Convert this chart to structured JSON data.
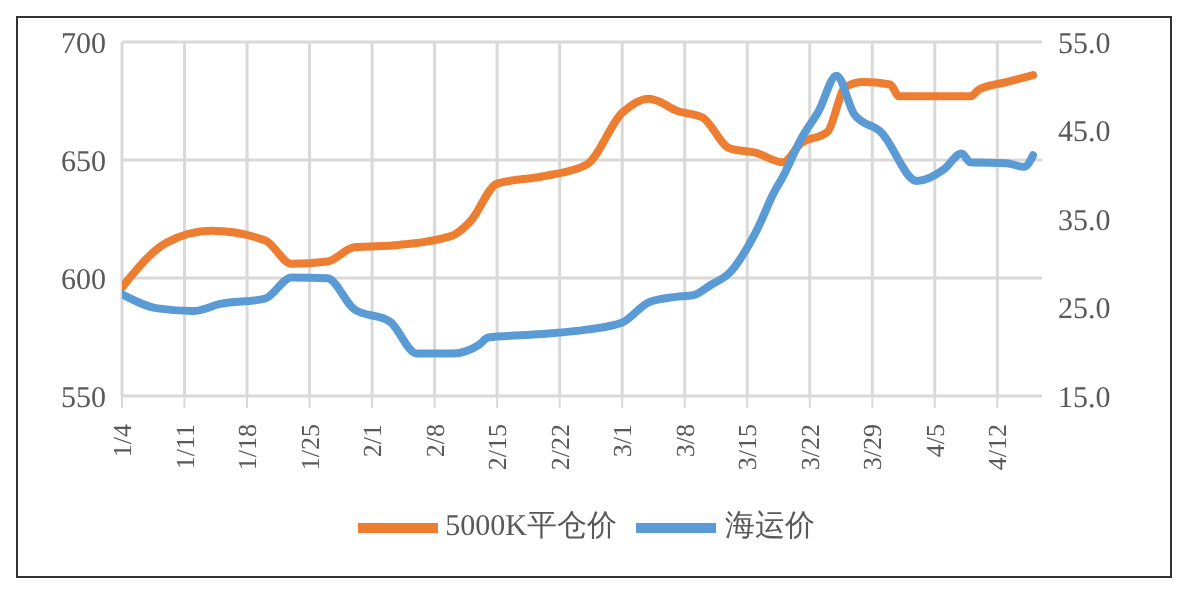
{
  "chart_data": {
    "type": "line",
    "xlim": [
      "--01-04",
      "--04-17"
    ],
    "xticks": [
      {
        "value": "--01-04",
        "label": "1/4"
      },
      {
        "value": "--01-11",
        "label": "1/11"
      },
      {
        "value": "--01-18",
        "label": "1/18"
      },
      {
        "value": "--01-25",
        "label": "1/25"
      },
      {
        "value": "--02-01",
        "label": "2/1"
      },
      {
        "value": "--02-08",
        "label": "2/8"
      },
      {
        "value": "--02-15",
        "label": "2/15"
      },
      {
        "value": "--02-22",
        "label": "2/22"
      },
      {
        "value": "--03-01",
        "label": "3/1"
      },
      {
        "value": "--03-08",
        "label": "3/8"
      },
      {
        "value": "--03-15",
        "label": "3/15"
      },
      {
        "value": "--03-22",
        "label": "3/22"
      },
      {
        "value": "--03-29",
        "label": "3/29"
      },
      {
        "value": "--04-05",
        "label": "4/5"
      },
      {
        "value": "--04-12",
        "label": "4/12"
      }
    ],
    "ylim": [
      550,
      700
    ],
    "yticks": [
      550,
      600,
      650,
      700
    ],
    "y2lim": [
      15,
      55
    ],
    "y2ticks": [
      {
        "value": 15,
        "label": "15.0"
      },
      {
        "value": 25,
        "label": "25.0"
      },
      {
        "value": 35,
        "label": "35.0"
      },
      {
        "value": 45,
        "label": "45.0"
      },
      {
        "value": 55,
        "label": "55.0"
      }
    ],
    "grid": true,
    "legend": "bottom",
    "marker": "none",
    "line_style": "solid",
    "series": [
      {
        "name": "5000K平仓价",
        "color": "#ed7d31",
        "x": [
          "--01-04",
          "--01-09",
          "--01-14",
          "--01-20",
          "--01-23",
          "--01-27",
          "--01-30",
          "--02-04",
          "--02-10",
          "--02-12",
          "--02-15",
          "--02-20",
          "--02-25",
          "--03-01",
          "--03-04",
          "--03-05",
          "--03-07",
          "--03-10",
          "--03-13",
          "--03-16",
          "--03-19",
          "--03-21",
          "--03-24",
          "--03-26",
          "--03-28",
          "--03-31",
          "--04-01",
          "--04-09",
          "--04-10",
          "--04-13",
          "--04-16"
        ],
        "values": [
          596,
          615,
          620,
          616,
          606,
          607,
          613,
          614,
          618,
          624,
          640,
          643,
          648,
          670,
          676,
          675,
          671,
          668,
          655,
          653,
          649,
          657,
          662,
          681,
          683,
          682,
          677,
          677,
          680,
          683,
          686
        ]
      },
      {
        "name": "海运价",
        "color": "#5b9bd5",
        "axis": "y2",
        "x": [
          "--01-04",
          "--01-08",
          "--01-12",
          "--01-15",
          "--01-20",
          "--01-23",
          "--01-27",
          "--01-30",
          "--02-03",
          "--02-06",
          "--02-10",
          "--02-13",
          "--02-14",
          "--02-20",
          "--02-25",
          "--03-01",
          "--03-04",
          "--03-07",
          "--03-09",
          "--03-11",
          "--03-13",
          "--03-16",
          "--03-18",
          "--03-19",
          "--03-21",
          "--03-23",
          "--03-25",
          "--03-27",
          "--03-30",
          "--04-03",
          "--04-06",
          "--04-08",
          "--04-09",
          "--04-13",
          "--04-15",
          "--04-16"
        ],
        "values": [
          26.5,
          24.9,
          24.6,
          25.4,
          26,
          28.4,
          28.3,
          24.8,
          23.4,
          19.8,
          19.8,
          20.8,
          21.6,
          22,
          22.5,
          23.3,
          25.6,
          26.2,
          26.4,
          27.6,
          28.9,
          33.6,
          38,
          39.8,
          44,
          47.2,
          51.2,
          46.8,
          44.8,
          39.3,
          40.6,
          42.4,
          41.4,
          41.3,
          40.9,
          42.2
        ]
      }
    ]
  }
}
